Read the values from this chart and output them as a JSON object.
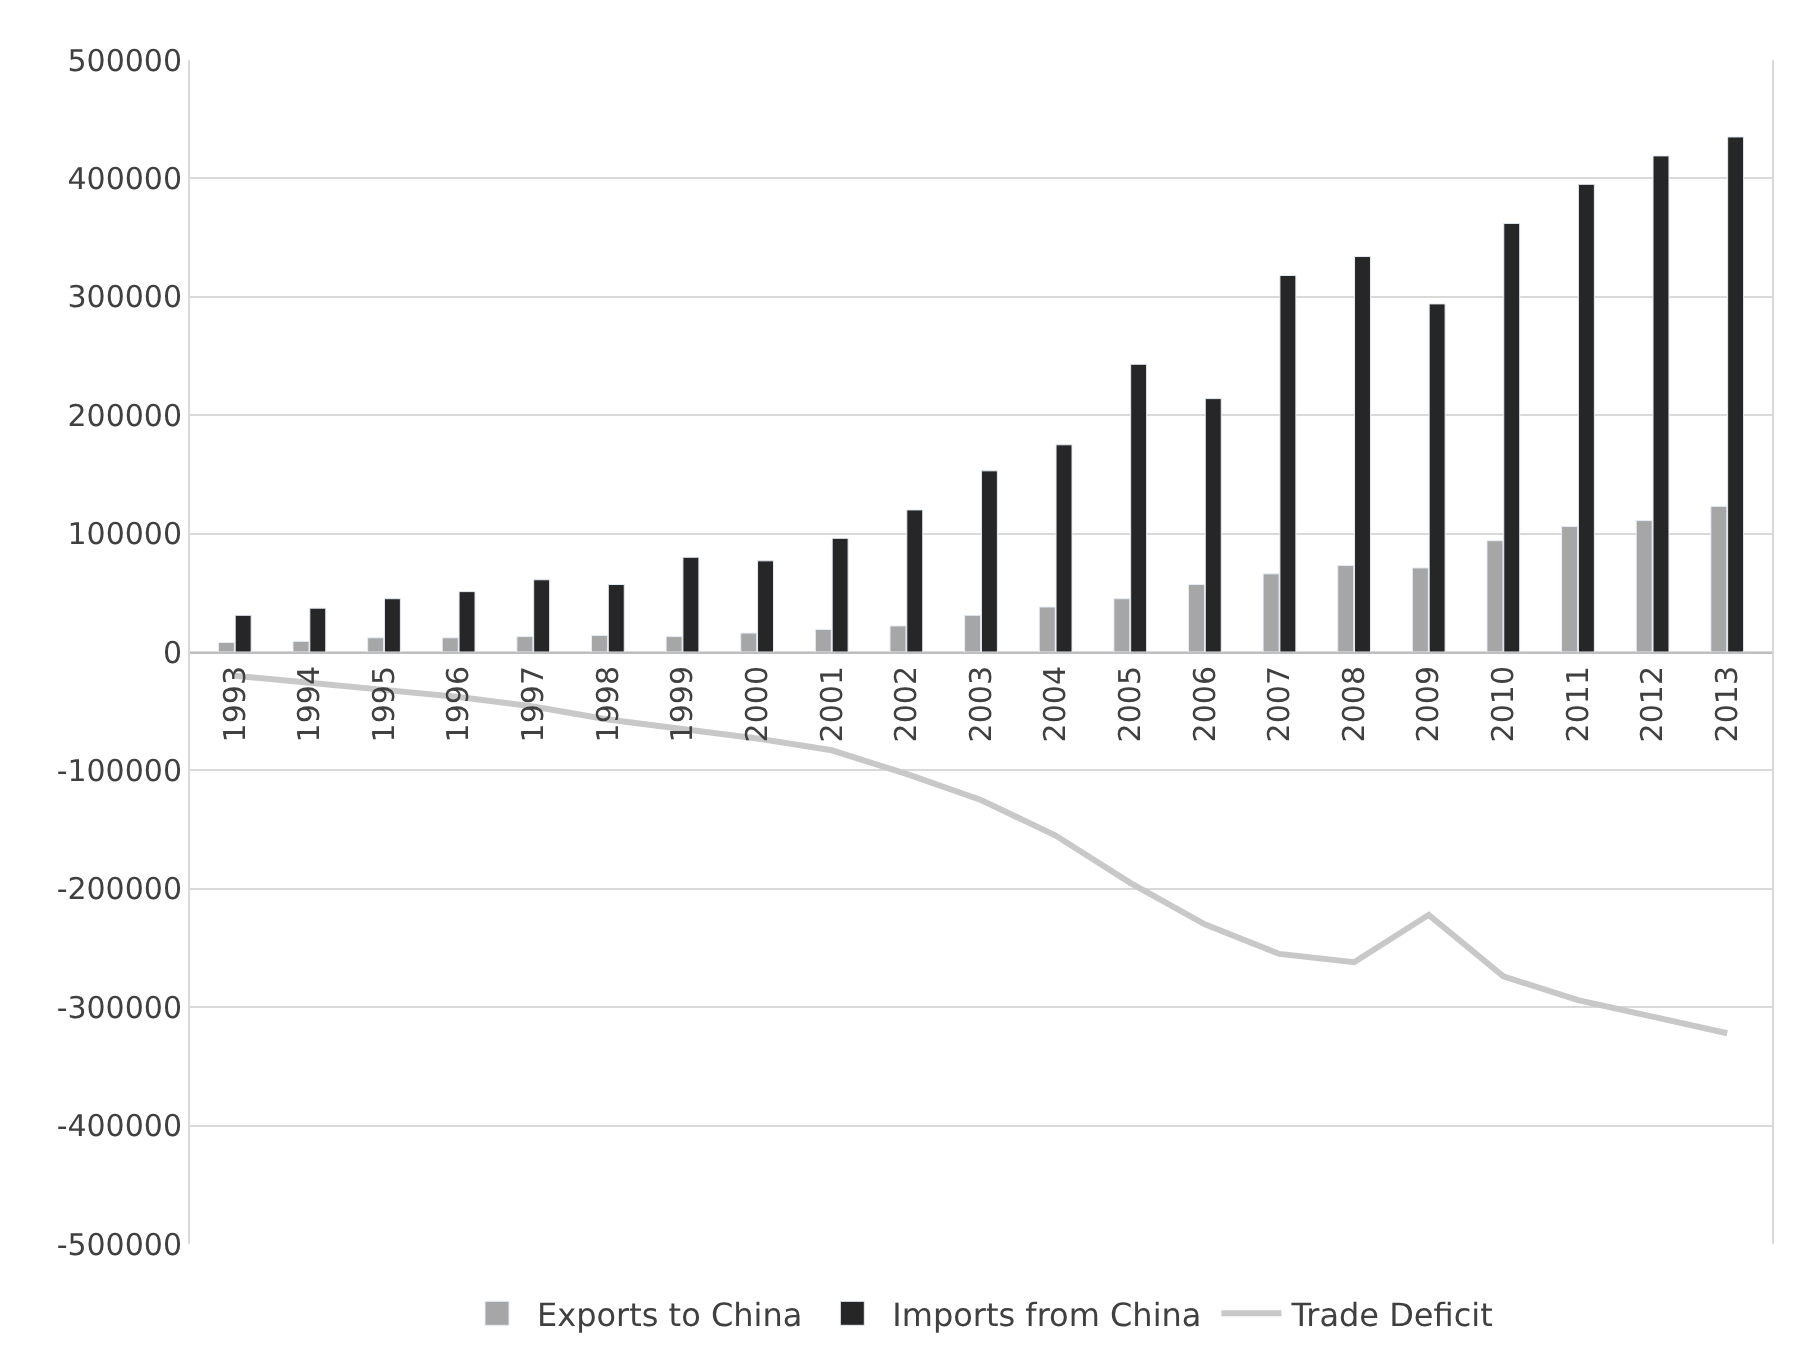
{
  "chart_data": {
    "type": "bar",
    "categories": [
      "1993",
      "1994",
      "1995",
      "1996",
      "1997",
      "1998",
      "1999",
      "2000",
      "2001",
      "2002",
      "2003",
      "2004",
      "2005",
      "2006",
      "2007",
      "2008",
      "2009",
      "2010",
      "2011",
      "2012",
      "2013"
    ],
    "series": [
      {
        "name": "Exports to China",
        "color": "#a6a6a6",
        "values": [
          8000,
          9000,
          12000,
          12000,
          13000,
          14000,
          13000,
          16000,
          19000,
          22000,
          31000,
          38000,
          45000,
          57000,
          66000,
          73000,
          71000,
          94000,
          106000,
          111000,
          123000
        ]
      },
      {
        "name": "Imports from China",
        "color": "#262626",
        "values": [
          31000,
          37000,
          45000,
          51000,
          61000,
          57000,
          80000,
          77000,
          96000,
          120000,
          153000,
          175000,
          243000,
          214000,
          318000,
          334000,
          294000,
          362000,
          395000,
          419000,
          435000
        ]
      },
      {
        "name": "Trade Deficit",
        "type": "line",
        "color": "#c8c8c8",
        "values": [
          -20000,
          -26000,
          -32000,
          -38000,
          -46000,
          -57000,
          -65000,
          -73000,
          -83000,
          -103000,
          -125000,
          -155000,
          -195000,
          -230000,
          -255000,
          -262000,
          -222000,
          -274000,
          -294000,
          -308000,
          -322000
        ]
      }
    ],
    "ylim": [
      -500000,
      500000
    ],
    "yticks": [
      -500000,
      -400000,
      -300000,
      -200000,
      -100000,
      0,
      100000,
      200000,
      300000,
      400000,
      500000
    ],
    "grid": "y",
    "legend": "bottom"
  }
}
